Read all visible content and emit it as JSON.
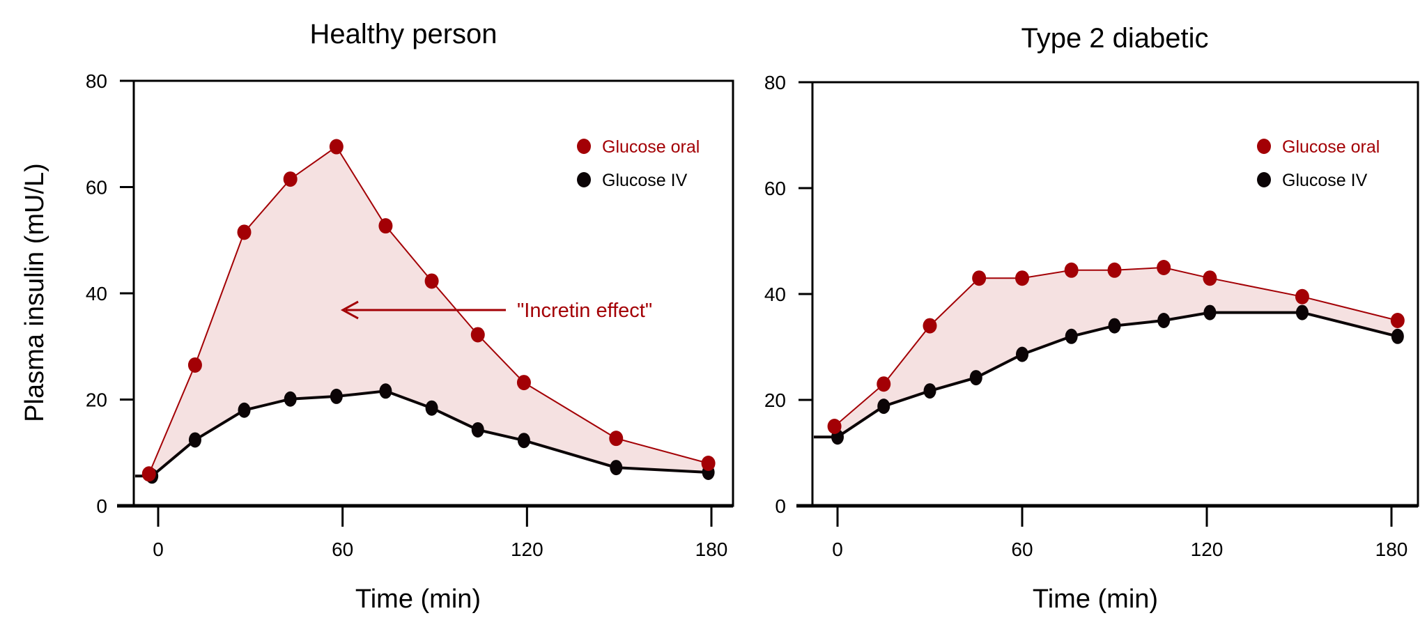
{
  "colors": {
    "oral": "#a30005",
    "iv": "#0b0406",
    "fill": "#f5e1e1",
    "axis": "#000000"
  },
  "chart_data": [
    {
      "type": "line",
      "title": "Healthy person",
      "xlabel": "Time (min)",
      "ylabel": "Plasma insulin (mU/L)",
      "xlim": [
        -12,
        184
      ],
      "ylim": [
        0,
        80
      ],
      "xticks": [
        "0",
        "60",
        "120",
        "180"
      ],
      "yticks": [
        "0",
        "20",
        "40",
        "60",
        "80"
      ],
      "grid": false,
      "legend_position": "top-right",
      "annotation": "\"Incretin effect\"",
      "series": [
        {
          "name": "Glucose oral",
          "x": [
            -3,
            12,
            28,
            43,
            58,
            74,
            89,
            104,
            119,
            149,
            179
          ],
          "y": [
            6,
            26.5,
            51.5,
            61.5,
            67.6,
            52.7,
            42.3,
            32.2,
            23.2,
            12.7,
            8
          ]
        },
        {
          "name": "Glucose IV",
          "x": [
            -2,
            12,
            28,
            43,
            58,
            74,
            89,
            104,
            119,
            149,
            179
          ],
          "y": [
            5.6,
            12.4,
            18,
            20.1,
            20.6,
            21.6,
            18.4,
            14.3,
            12.3,
            7.2,
            6.3
          ]
        }
      ]
    },
    {
      "type": "line",
      "title": "Type 2 diabetic",
      "xlabel": "Time (min)",
      "ylabel": "",
      "xlim": [
        -12,
        184
      ],
      "ylim": [
        0,
        80
      ],
      "xticks": [
        "0",
        "60",
        "120",
        "180"
      ],
      "yticks": [
        "0",
        "20",
        "40",
        "60",
        "80"
      ],
      "grid": false,
      "legend_position": "top-right",
      "series": [
        {
          "name": "Glucose oral",
          "x": [
            -1,
            15,
            30,
            46,
            60,
            76,
            90,
            106,
            121,
            151,
            182
          ],
          "y": [
            15,
            23,
            34,
            43,
            43,
            44.5,
            44.5,
            45,
            43,
            39.5,
            35
          ]
        },
        {
          "name": "Glucose IV",
          "x": [
            0,
            15,
            30,
            45,
            60,
            76,
            90,
            106,
            121,
            151,
            182
          ],
          "y": [
            13,
            18.8,
            21.7,
            24.2,
            28.6,
            32,
            34,
            35,
            36.5,
            36.5,
            32
          ]
        }
      ]
    }
  ]
}
